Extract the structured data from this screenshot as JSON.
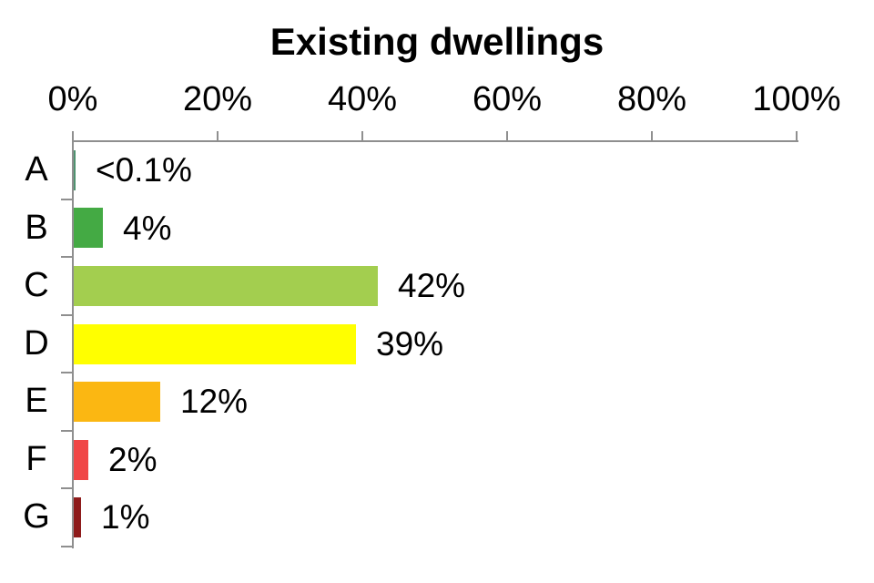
{
  "chart_data": {
    "type": "bar",
    "orientation": "horizontal",
    "title": "Existing dwellings",
    "categories": [
      "A",
      "B",
      "C",
      "D",
      "E",
      "F",
      "G"
    ],
    "values": [
      0.05,
      4,
      42,
      39,
      12,
      2,
      1
    ],
    "value_labels": [
      "<0.1%",
      "4%",
      "42%",
      "39%",
      "12%",
      "2%",
      "1%"
    ],
    "bar_colors": [
      "#4f9370",
      "#44aa44",
      "#a3ce4f",
      "#ffff00",
      "#fbb712",
      "#f04646",
      "#8e1b1b"
    ],
    "x_ticks": [
      "0%",
      "20%",
      "40%",
      "60%",
      "80%",
      "100%"
    ],
    "x_tick_values": [
      0,
      20,
      40,
      60,
      80,
      100
    ],
    "xlim": [
      0,
      100
    ],
    "xlabel": "",
    "ylabel": "",
    "grid": false,
    "legend_position": "none",
    "axis_color": "#8f8f8f",
    "text_color": "#000000",
    "background_color": "#ffffff"
  }
}
